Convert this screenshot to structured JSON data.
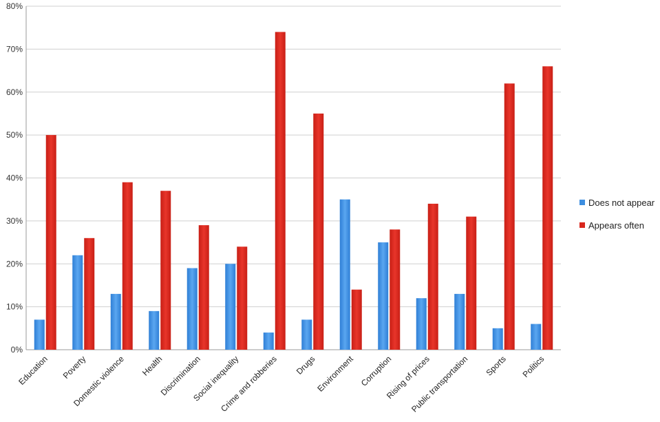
{
  "chart_data": {
    "type": "bar",
    "title": "",
    "xlabel": "",
    "ylabel": "",
    "ylim": [
      0,
      80
    ],
    "y_tick_labels": [
      "0%",
      "10%",
      "20%",
      "30%",
      "40%",
      "50%",
      "60%",
      "70%",
      "80%"
    ],
    "y_ticks": [
      0,
      10,
      20,
      30,
      40,
      50,
      60,
      70,
      80
    ],
    "grid": true,
    "legend_position": "right",
    "categories": [
      "Education",
      "Poverty",
      "Domestic violence",
      "Health",
      "Discrimination",
      "Social inequality",
      "Crime and robberies",
      "Drugs",
      "Environment",
      "Corruption",
      "Rising of prices",
      "Public transportation",
      "Sports",
      "Politics"
    ],
    "series": [
      {
        "name": "Does not appear",
        "color": "#3d8ee0",
        "values": [
          7,
          22,
          13,
          9,
          19,
          20,
          4,
          7,
          35,
          25,
          12,
          13,
          5,
          6
        ]
      },
      {
        "name": "Appears often",
        "color": "#d9271d",
        "values": [
          50,
          26,
          39,
          37,
          29,
          24,
          74,
          55,
          14,
          28,
          34,
          31,
          62,
          66
        ]
      }
    ]
  }
}
